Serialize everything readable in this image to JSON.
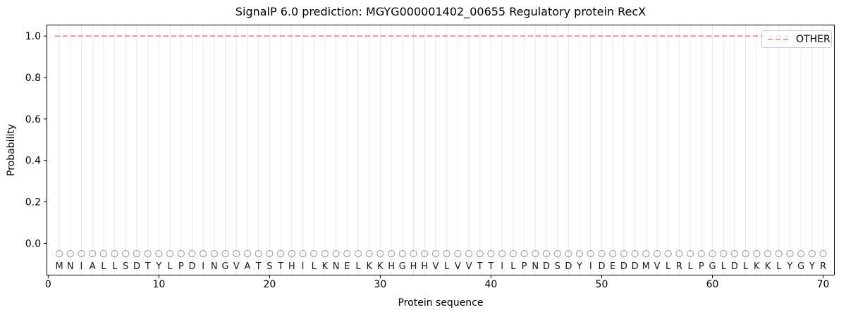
{
  "chart_data": {
    "type": "line",
    "title": "SignalP 6.0 prediction: MGYG000001402_00655 Regulatory protein RecX",
    "xlabel": "Protein sequence",
    "ylabel": "Probability",
    "xlim": [
      -0.15,
      71.05
    ],
    "ylim": [
      -0.155,
      1.055
    ],
    "x_ticks": [
      0,
      10,
      20,
      30,
      40,
      50,
      60,
      70
    ],
    "y_ticks": [
      {
        "v": 0.0,
        "label": "0.0"
      },
      {
        "v": 0.2,
        "label": "0.2"
      },
      {
        "v": 0.4,
        "label": "0.4"
      },
      {
        "v": 0.6,
        "label": "0.6"
      },
      {
        "v": 0.8,
        "label": "0.8"
      },
      {
        "v": 1.0,
        "label": "1.0"
      }
    ],
    "grid": "vertical-line-per-residue",
    "series": [
      {
        "name": "OTHER",
        "linestyle": "dashed",
        "color": "#f08080",
        "constant_y": 1.0,
        "x_range": [
          0.6,
          70.4
        ]
      }
    ],
    "legend": {
      "position": "upper-right",
      "entries": [
        {
          "label": "OTHER",
          "linestyle": "dashed",
          "color": "#f08080"
        }
      ]
    },
    "sequence": "MNIALLSDTYLPDINGVATSTHILKNELKKHGHHVLVVTTILPNDSDYIDEDDMVLRLPGLDLKKLYGYR",
    "sequence_start_position": 1,
    "sequence_marker": {
      "shape": "open-circle",
      "y": -0.05,
      "color": "#9e9e9e"
    },
    "sequence_letter_y": -0.108,
    "colors": {
      "grid": "#e8e8e8",
      "spine": "#000000",
      "tick_label": "#000000",
      "sequence_letter": "#1a1a1a"
    }
  }
}
